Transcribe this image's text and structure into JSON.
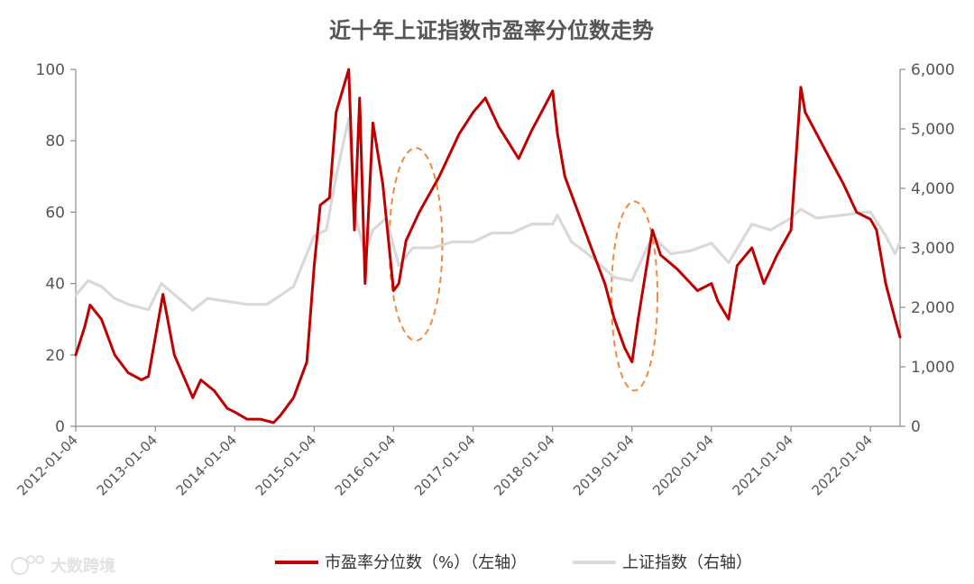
{
  "chart_data": {
    "type": "line",
    "title": "近十年上证指数市盈率分位数走势",
    "x_tick_labels": [
      "2012-01-04",
      "2013-01-04",
      "2014-01-04",
      "2015-01-04",
      "2016-01-04",
      "2017-01-04",
      "2018-01-04",
      "2019-01-04",
      "2020-01-04",
      "2021-01-04",
      "2022-01-04"
    ],
    "x_range": [
      "2012-01-04",
      "2022-05-20"
    ],
    "y_left": {
      "range": [
        0,
        100
      ],
      "ticks": [
        "0",
        "20",
        "40",
        "60",
        "80",
        "100"
      ]
    },
    "y_right": {
      "range": [
        0,
        6000
      ],
      "ticks": [
        "0",
        "1,000",
        "2,000",
        "3,000",
        "4,000",
        "5,000",
        "6,000"
      ]
    },
    "grid": false,
    "legend_position": "bottom",
    "series": [
      {
        "name": "市盈率分位数（%）（左轴）",
        "axis": "left",
        "color": "#c00000",
        "x": [
          "2012-01-04",
          "2012-02-15",
          "2012-03-10",
          "2012-05-01",
          "2012-07-01",
          "2012-09-01",
          "2012-11-01",
          "2012-12-03",
          "2013-01-04",
          "2013-02-08",
          "2013-04-01",
          "2013-06-25",
          "2013-08-01",
          "2013-10-01",
          "2013-12-01",
          "2014-01-04",
          "2014-03-01",
          "2014-05-01",
          "2014-07-01",
          "2014-08-01",
          "2014-10-01",
          "2014-12-01",
          "2015-01-04",
          "2015-02-01",
          "2015-03-15",
          "2015-04-15",
          "2015-06-12",
          "2015-07-08",
          "2015-08-01",
          "2015-08-26",
          "2015-10-01",
          "2015-11-15",
          "2016-01-04",
          "2016-01-28",
          "2016-03-01",
          "2016-05-01",
          "2016-08-01",
          "2016-11-01",
          "2017-01-04",
          "2017-03-01",
          "2017-05-01",
          "2017-08-01",
          "2017-10-01",
          "2017-12-01",
          "2018-01-04",
          "2018-01-26",
          "2018-03-01",
          "2018-05-01",
          "2018-07-01",
          "2018-09-01",
          "2018-10-15",
          "2018-12-01",
          "2019-01-04",
          "2019-02-01",
          "2019-04-08",
          "2019-05-15",
          "2019-08-01",
          "2019-11-01",
          "2020-01-04",
          "2020-02-03",
          "2020-03-23",
          "2020-05-01",
          "2020-07-08",
          "2020-09-01",
          "2020-11-01",
          "2021-01-04",
          "2021-02-18",
          "2021-03-10",
          "2021-05-01",
          "2021-07-01",
          "2021-09-01",
          "2021-11-01",
          "2022-01-04",
          "2022-02-01",
          "2022-03-15",
          "2022-04-27",
          "2022-05-20"
        ],
        "values": [
          20,
          28,
          34,
          30,
          20,
          15,
          13,
          14,
          25,
          37,
          20,
          8,
          13,
          10,
          5,
          4,
          2,
          2,
          1,
          3,
          8,
          18,
          45,
          62,
          64,
          88,
          100,
          55,
          92,
          40,
          85,
          68,
          38,
          40,
          52,
          60,
          70,
          82,
          88,
          92,
          84,
          75,
          83,
          90,
          94,
          82,
          70,
          60,
          50,
          40,
          30,
          22,
          18,
          30,
          55,
          48,
          44,
          38,
          40,
          35,
          30,
          45,
          50,
          40,
          48,
          55,
          95,
          88,
          82,
          75,
          68,
          60,
          58,
          55,
          40,
          30,
          25
        ]
      },
      {
        "name": "上证指数（右轴）",
        "axis": "right",
        "color": "#d9d9d9",
        "x": [
          "2012-01-04",
          "2012-03-01",
          "2012-05-01",
          "2012-07-01",
          "2012-09-01",
          "2012-12-03",
          "2013-02-01",
          "2013-06-25",
          "2013-09-01",
          "2013-12-01",
          "2014-03-01",
          "2014-06-01",
          "2014-08-01",
          "2014-10-01",
          "2014-12-01",
          "2015-01-04",
          "2015-03-01",
          "2015-04-15",
          "2015-06-12",
          "2015-07-08",
          "2015-08-26",
          "2015-10-01",
          "2015-12-01",
          "2016-01-28",
          "2016-04-01",
          "2016-07-01",
          "2016-10-01",
          "2017-01-04",
          "2017-04-01",
          "2017-07-01",
          "2017-10-01",
          "2018-01-04",
          "2018-01-26",
          "2018-04-01",
          "2018-07-01",
          "2018-10-15",
          "2019-01-04",
          "2019-04-08",
          "2019-07-01",
          "2019-10-01",
          "2020-01-04",
          "2020-03-23",
          "2020-07-08",
          "2020-10-01",
          "2021-01-04",
          "2021-02-18",
          "2021-05-01",
          "2021-09-01",
          "2021-12-01",
          "2022-01-04",
          "2022-03-15",
          "2022-04-27",
          "2022-05-20"
        ],
        "values": [
          2200,
          2450,
          2350,
          2150,
          2050,
          1960,
          2400,
          1950,
          2150,
          2100,
          2050,
          2050,
          2200,
          2350,
          2900,
          3200,
          3300,
          4200,
          5178,
          3600,
          2900,
          3300,
          3500,
          2700,
          3000,
          3000,
          3100,
          3100,
          3250,
          3250,
          3400,
          3400,
          3550,
          3100,
          2850,
          2500,
          2450,
          3200,
          2900,
          2950,
          3080,
          2750,
          3400,
          3300,
          3500,
          3650,
          3500,
          3550,
          3600,
          3600,
          3200,
          2900,
          3100
        ]
      }
    ]
  },
  "legend": {
    "pe_label": "市盈率分位数（%）（左轴）",
    "index_label": "上证指数（右轴）"
  },
  "watermark": {
    "text": "大数跨境"
  }
}
